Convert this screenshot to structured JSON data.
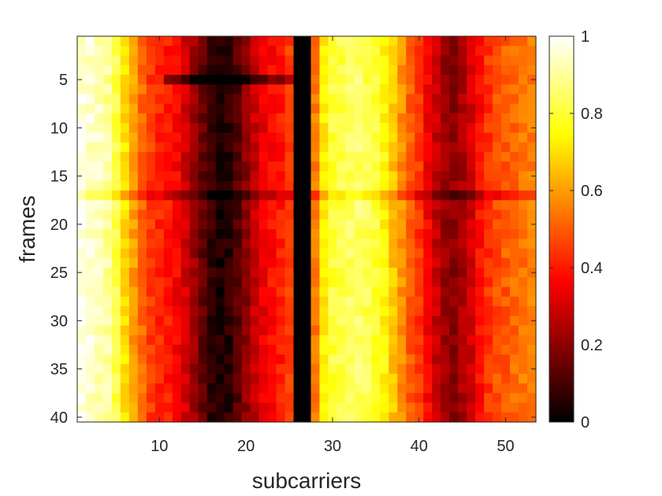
{
  "chart_data": {
    "type": "heatmap",
    "title": "",
    "xlabel": "subcarriers",
    "ylabel": "frames",
    "x_range": [
      1,
      53
    ],
    "y_range": [
      1,
      40
    ],
    "y_direction": "reversed",
    "x_ticks": [
      10,
      20,
      30,
      40,
      50
    ],
    "y_ticks": [
      5,
      10,
      15,
      20,
      25,
      30,
      35,
      40
    ],
    "colormap": "hot",
    "color_range": [
      0,
      1
    ],
    "colorbar_ticks": [
      0,
      0.2,
      0.4,
      0.6,
      0.8,
      1
    ],
    "colorbar_tick_labels": [
      "0",
      "0.2",
      "0.4",
      "0.6",
      "0.8",
      "1"
    ],
    "column_profile": {
      "subcarriers": [
        1,
        2,
        3,
        4,
        5,
        6,
        7,
        8,
        9,
        10,
        11,
        12,
        13,
        14,
        15,
        16,
        17,
        18,
        19,
        20,
        21,
        22,
        23,
        24,
        25,
        26,
        27,
        28,
        29,
        30,
        31,
        32,
        33,
        34,
        35,
        36,
        37,
        38,
        39,
        40,
        41,
        42,
        43,
        44,
        45,
        46,
        47,
        48,
        49,
        50,
        51,
        52,
        53
      ],
      "values": [
        0.97,
        0.95,
        0.93,
        0.9,
        0.82,
        0.7,
        0.6,
        0.52,
        0.45,
        0.42,
        0.4,
        0.36,
        0.3,
        0.22,
        0.14,
        0.07,
        0.04,
        0.06,
        0.12,
        0.2,
        0.28,
        0.34,
        0.38,
        0.4,
        0.45,
        0.0,
        0.0,
        0.55,
        0.72,
        0.8,
        0.82,
        0.84,
        0.85,
        0.83,
        0.8,
        0.74,
        0.66,
        0.58,
        0.5,
        0.44,
        0.36,
        0.28,
        0.22,
        0.2,
        0.24,
        0.3,
        0.38,
        0.44,
        0.48,
        0.5,
        0.52,
        0.54,
        0.55
      ]
    },
    "null_subcarriers": [
      26,
      27
    ],
    "disturbed_frames": [
      {
        "frame": 5,
        "note": "row 5 dips for subcarriers 11-25"
      },
      {
        "frame": 17,
        "note": "row 17 slightly darker across the band"
      }
    ]
  }
}
